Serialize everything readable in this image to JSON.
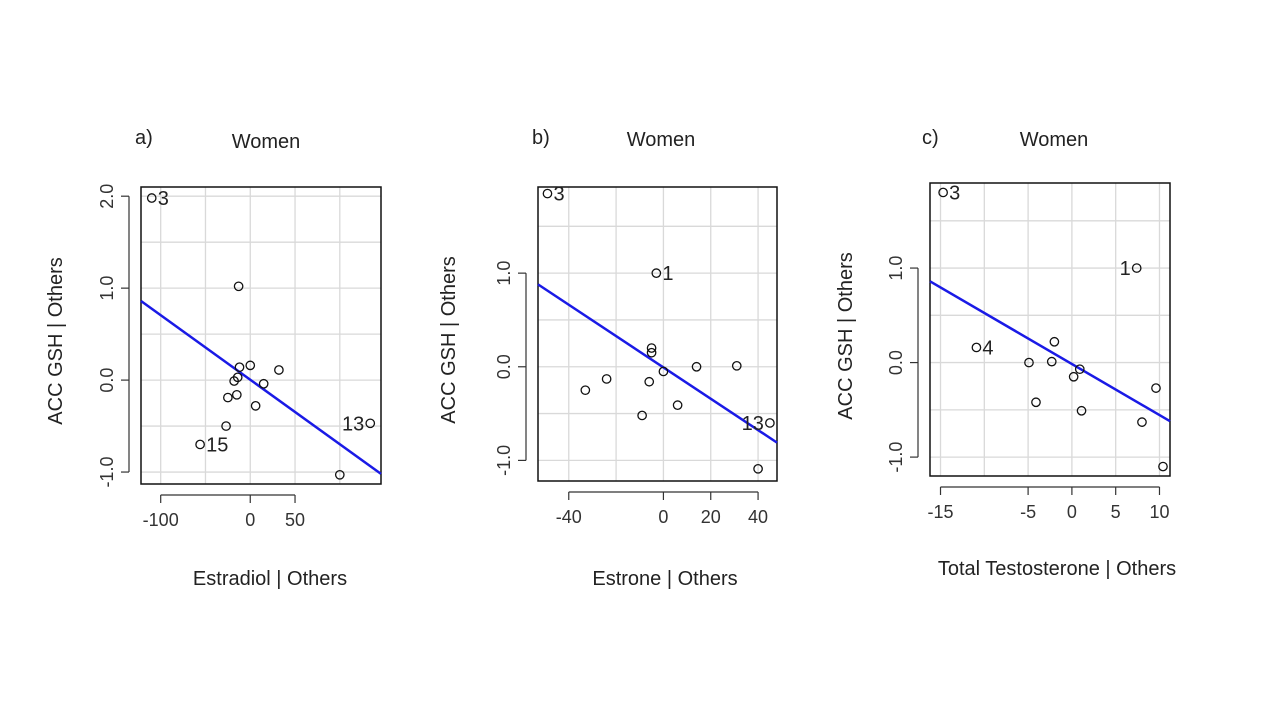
{
  "chart_data": [
    {
      "type": "scatter",
      "panel_label": "a)",
      "title": "Women",
      "xlabel": "Estradiol | Others",
      "ylabel": "ACC GSH | Others",
      "xlim": [
        -122,
        146
      ],
      "ylim": [
        -1.13,
        2.1
      ],
      "xticks": [
        -100,
        0,
        50
      ],
      "xtick_labels": [
        "-100",
        "0",
        "50"
      ],
      "yticks": [
        -1.0,
        0.0,
        1.0,
        2.0
      ],
      "ytick_labels": [
        "-1.0",
        "0.0",
        "1.0",
        "2.0"
      ],
      "grid_x": [
        -100,
        -50,
        0,
        50,
        100
      ],
      "grid_y": [
        -1.0,
        -0.5,
        0.0,
        0.5,
        1.0,
        1.5,
        2.0
      ],
      "fit_line": {
        "x": [
          -122,
          146
        ],
        "y": [
          0.86,
          -1.02
        ],
        "color": "#1a1ae6"
      },
      "points": [
        {
          "x": -110,
          "y": 1.98,
          "label": "3",
          "label_side": "right"
        },
        {
          "x": -13,
          "y": 1.02
        },
        {
          "x": -12,
          "y": 0.14
        },
        {
          "x": -14,
          "y": 0.03
        },
        {
          "x": -18,
          "y": -0.01
        },
        {
          "x": 0,
          "y": 0.16
        },
        {
          "x": 32,
          "y": 0.11
        },
        {
          "x": 15,
          "y": -0.04
        },
        {
          "x": -15,
          "y": -0.16
        },
        {
          "x": -25,
          "y": -0.19
        },
        {
          "x": 6,
          "y": -0.28
        },
        {
          "x": -27,
          "y": -0.5
        },
        {
          "x": -56,
          "y": -0.7,
          "label": "15",
          "label_side": "right"
        },
        {
          "x": 134,
          "y": -0.47,
          "label": "13",
          "label_side": "left"
        },
        {
          "x": 100,
          "y": -1.03
        }
      ]
    },
    {
      "type": "scatter",
      "panel_label": "b)",
      "title": "Women",
      "xlabel": "Estrone | Others",
      "ylabel": "ACC GSH | Others",
      "xlim": [
        -53,
        48
      ],
      "ylim": [
        -1.22,
        1.92
      ],
      "xticks": [
        -40,
        0,
        20,
        40
      ],
      "xtick_labels": [
        "-40",
        "0",
        "20",
        "40"
      ],
      "yticks": [
        -1.0,
        0.0,
        1.0
      ],
      "ytick_labels": [
        "-1.0",
        "0.0",
        "1.0"
      ],
      "grid_x": [
        -40,
        -20,
        0,
        20,
        40
      ],
      "grid_y": [
        -1.0,
        -0.5,
        0.0,
        0.5,
        1.0,
        1.5
      ],
      "fit_line": {
        "x": [
          -53,
          48
        ],
        "y": [
          0.88,
          -0.81
        ],
        "color": "#1a1ae6"
      },
      "points": [
        {
          "x": -49,
          "y": 1.85,
          "label": "3",
          "label_side": "right"
        },
        {
          "x": -3,
          "y": 1.0,
          "label": "1",
          "label_side": "right"
        },
        {
          "x": -5,
          "y": 0.2
        },
        {
          "x": -5,
          "y": 0.15
        },
        {
          "x": 0,
          "y": -0.05
        },
        {
          "x": 14,
          "y": 0.0
        },
        {
          "x": 31,
          "y": 0.01
        },
        {
          "x": -24,
          "y": -0.13
        },
        {
          "x": -6,
          "y": -0.16
        },
        {
          "x": -33,
          "y": -0.25
        },
        {
          "x": 6,
          "y": -0.41
        },
        {
          "x": -9,
          "y": -0.52
        },
        {
          "x": 45,
          "y": -0.6,
          "label": "13",
          "label_side": "left"
        },
        {
          "x": 40,
          "y": -1.09
        }
      ]
    },
    {
      "type": "scatter",
      "panel_label": "c)",
      "title": "Women",
      "xlabel": "Total Testosterone | Others",
      "ylabel": "ACC GSH | Others",
      "xlim": [
        -16.2,
        11.2
      ],
      "ylim": [
        -1.2,
        1.9
      ],
      "xticks": [
        -15,
        -5,
        0,
        5,
        10
      ],
      "xtick_labels": [
        "-15",
        "-5",
        "0",
        "5",
        "10"
      ],
      "yticks": [
        -1.0,
        0.0,
        1.0
      ],
      "ytick_labels": [
        "-1.0",
        "0.0",
        "1.0"
      ],
      "grid_x": [
        -15,
        -10,
        -5,
        0,
        5,
        10
      ],
      "grid_y": [
        -1.0,
        -0.5,
        0.0,
        0.5,
        1.0,
        1.5
      ],
      "fit_line": {
        "x": [
          -16.2,
          11.2
        ],
        "y": [
          0.86,
          -0.62
        ],
        "color": "#1a1ae6"
      },
      "points": [
        {
          "x": -14.7,
          "y": 1.8,
          "label": "3",
          "label_side": "right"
        },
        {
          "x": 7.4,
          "y": 1.0,
          "label": "1",
          "label_side": "left"
        },
        {
          "x": -10.9,
          "y": 0.16,
          "label": "4",
          "label_side": "right"
        },
        {
          "x": -2.0,
          "y": 0.22
        },
        {
          "x": -4.9,
          "y": 0.0
        },
        {
          "x": -2.3,
          "y": 0.01
        },
        {
          "x": 0.9,
          "y": -0.07
        },
        {
          "x": 0.2,
          "y": -0.15
        },
        {
          "x": -4.1,
          "y": -0.42
        },
        {
          "x": 1.1,
          "y": -0.51
        },
        {
          "x": 9.6,
          "y": -0.27
        },
        {
          "x": 8.0,
          "y": -0.63
        },
        {
          "x": 10.4,
          "y": -1.1
        }
      ]
    }
  ]
}
